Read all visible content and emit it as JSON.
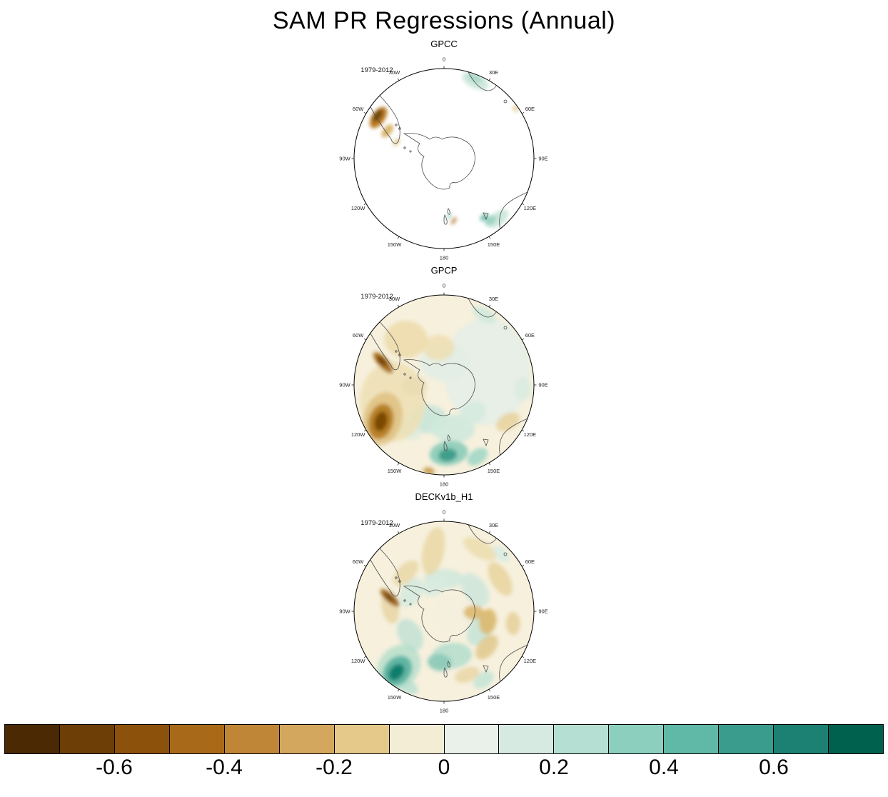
{
  "chart_data": {
    "type": "heatmap",
    "title": "SAM PR Regressions (Annual)",
    "projection": "south polar stereographic",
    "lon_labels": [
      "0",
      "30E",
      "60E",
      "90E",
      "120E",
      "150E",
      "180",
      "150W",
      "120W",
      "90W",
      "60W",
      "30W"
    ],
    "colorbar": {
      "range": [
        -0.8,
        0.8
      ],
      "interval": 0.1,
      "tick_values": [
        -0.6,
        -0.4,
        -0.2,
        0,
        0.2,
        0.4,
        0.6
      ],
      "tick_labels": [
        "-0.6",
        "-0.4",
        "-0.2",
        "0",
        "0.2",
        "0.4",
        "0.6"
      ],
      "colors": [
        "#4a2903",
        "#6d3e06",
        "#8c510a",
        "#a86a19",
        "#bf8638",
        "#d3a75d",
        "#e4c98a",
        "#f4edd6",
        "#eaf1ea",
        "#d6eae2",
        "#b5dfd3",
        "#8ccfbf",
        "#60b8a6",
        "#399c8d",
        "#1c8073",
        "#01614f"
      ]
    },
    "panels": [
      {
        "title": "GPCC",
        "period": "1979-2012",
        "coverage": "land only (ocean blank)",
        "bg": "#ffffff",
        "notable_features": [
          "strong negative (brown, ~-0.3 to -0.5) over southern South America near 60W",
          "weak positive (teal, ~0.1-0.2) over southern Africa near 30E",
          "positive (~0.1-0.3) over southeast Australia and Tasmania near 150E",
          "small mixed values over New Zealand"
        ],
        "shading": [
          [
            22,
            0.93,
            20,
            10,
            25,
            "#cfe8dd",
            1
          ],
          [
            21,
            0.96,
            11,
            5,
            25,
            "#a9d8c8",
            1
          ],
          [
            55,
            0.97,
            5,
            3,
            55,
            "#dfc27d",
            0.9
          ],
          [
            302,
            0.86,
            9,
            17,
            35,
            "#b97a22",
            1
          ],
          [
            303,
            0.88,
            5,
            10,
            35,
            "#6f4407",
            1
          ],
          [
            296,
            0.7,
            6,
            11,
            40,
            "#d9b268",
            0.95
          ],
          [
            289,
            0.56,
            4,
            7,
            40,
            "#e6d29e",
            0.9
          ],
          [
            138,
            0.9,
            17,
            9,
            -40,
            "#cde8dd",
            1
          ],
          [
            143,
            0.86,
            9,
            6,
            -40,
            "#9ed4c2",
            1
          ],
          [
            146,
            0.79,
            6,
            4,
            -40,
            "#74c1ad",
            1
          ],
          [
            171,
            0.7,
            2.5,
            6,
            35,
            "#c38e4d",
            1
          ],
          [
            175,
            0.64,
            2.5,
            5,
            35,
            "#a6d6c4",
            1
          ]
        ]
      },
      {
        "title": "GPCP",
        "period": "1979-2012",
        "coverage": "full field",
        "bg": "#f6f0dd",
        "notable_features": [
          "strong negative (dark brown, ~-0.5 to -0.7) blob in SE Pacific near 120W",
          "negative streak (~-0.4) along southern South America / Drake Passage",
          "strong positive (teal, ~0.3-0.5) south of New Zealand near 180",
          "weak positive ring around Antarctic coast, weak negative in midlatitudes west"
        ],
        "shading": [
          [
            73,
            0.5,
            60,
            75,
            0,
            "#e4efe7",
            0.85
          ],
          [
            0,
            0.25,
            34,
            26,
            0,
            "#e1eee6",
            0.8
          ],
          [
            205,
            0.42,
            26,
            20,
            0,
            "#c9e6d9",
            0.9
          ],
          [
            168,
            0.5,
            30,
            20,
            0,
            "#cfe9dc",
            0.9
          ],
          [
            135,
            0.45,
            20,
            15,
            -40,
            "#d5ebdf",
            0.85
          ],
          [
            218,
            0.62,
            18,
            13,
            40,
            "#dcecdf",
            0.8
          ],
          [
            252,
            0.6,
            46,
            56,
            0,
            "#eedfb2",
            0.8
          ],
          [
            320,
            0.66,
            30,
            26,
            0,
            "#ecd9a6",
            0.8
          ],
          [
            352,
            0.42,
            22,
            18,
            0,
            "#eddcab",
            0.75
          ],
          [
            268,
            0.33,
            18,
            14,
            0,
            "#e8dab1",
            0.7
          ],
          [
            120,
            0.82,
            18,
            11,
            -30,
            "#e8d29c",
            0.85
          ],
          [
            93,
            0.88,
            12,
            16,
            0,
            "#ddecdf",
            0.9
          ],
          [
            30,
            0.9,
            18,
            9,
            28,
            "#d2e9dd",
            0.9
          ],
          [
            155,
            0.88,
            16,
            10,
            -35,
            "#a7d9c8",
            0.95
          ],
          [
            176,
            0.76,
            27,
            17,
            -8,
            "#8fcdbb",
            0.95
          ],
          [
            177,
            0.78,
            13,
            9,
            -8,
            "#3f9f8b",
            1
          ],
          [
            190,
            0.97,
            8,
            5,
            10,
            "#c99b4e",
            0.9
          ],
          [
            241,
            0.78,
            27,
            38,
            15,
            "#d8b368",
            0.6
          ],
          [
            240,
            0.81,
            17,
            25,
            15,
            "#b4791f",
            0.9
          ],
          [
            240,
            0.81,
            9,
            14,
            15,
            "#7c4a06",
            1
          ],
          [
            290,
            0.72,
            19,
            7,
            48,
            "#a96e18",
            0.95
          ],
          [
            291,
            0.74,
            9,
            4,
            48,
            "#70430a",
            1
          ]
        ]
      },
      {
        "title": "DECKv1b_H1",
        "period": "1979-2012",
        "coverage": "full field (model)",
        "bg": "#f6f0dd",
        "notable_features": [
          "positive (teal) annulus around Antarctic coast (~0.1-0.3)",
          "negative (tan/orange) ring in midlatitudes, strongest near 90E-120E (~-0.3)",
          "strong positive (dark teal, ~0.5-0.7) blob near 150W at map edge",
          "negative streak (~-0.4) near Antarctic Peninsula / 90W"
        ],
        "shading": [
          [
            0,
            0.36,
            28,
            14,
            0,
            "#d3e9dc",
            0.9
          ],
          [
            55,
            0.42,
            26,
            16,
            55,
            "#cfe7da",
            0.9
          ],
          [
            115,
            0.45,
            26,
            16,
            -60,
            "#c8e4d6",
            0.9
          ],
          [
            170,
            0.5,
            28,
            18,
            -5,
            "#b9dfcf",
            0.95
          ],
          [
            185,
            0.57,
            17,
            12,
            8,
            "#8ecbb8",
            0.95
          ],
          [
            235,
            0.46,
            24,
            16,
            60,
            "#c6e3d5",
            0.95
          ],
          [
            300,
            0.42,
            22,
            14,
            -60,
            "#d5ebdf",
            0.9
          ],
          [
            340,
            0.3,
            20,
            13,
            -25,
            "#d8ecdf",
            0.85
          ],
          [
            105,
            0.1,
            30,
            26,
            0,
            "#f4efdd",
            0.95
          ],
          [
            350,
            0.68,
            34,
            15,
            -78,
            "#ead7a4",
            0.85
          ],
          [
            30,
            0.8,
            26,
            12,
            30,
            "#ecdcab",
            0.8
          ],
          [
            60,
            0.72,
            26,
            13,
            60,
            "#e7d49e",
            0.85
          ],
          [
            103,
            0.5,
            18,
            12,
            -80,
            "#dcb96d",
            0.9
          ],
          [
            100,
            0.78,
            16,
            10,
            90,
            "#e6d09a",
            0.85
          ],
          [
            130,
            0.62,
            20,
            12,
            -50,
            "#e2c88c",
            0.85
          ],
          [
            160,
            0.75,
            18,
            10,
            -20,
            "#e8d5a2",
            0.8
          ],
          [
            275,
            0.6,
            24,
            12,
            80,
            "#e7d3a0",
            0.8
          ],
          [
            315,
            0.6,
            22,
            12,
            -45,
            "#e9d6a4",
            0.8
          ],
          [
            92,
            0.33,
            14,
            10,
            0,
            "#dcb86e",
            0.9
          ],
          [
            150,
            0.88,
            16,
            10,
            -35,
            "#c6e5d6",
            0.9
          ],
          [
            205,
            0.93,
            14,
            9,
            25,
            "#bfe2d3",
            0.9
          ],
          [
            45,
            0.9,
            14,
            8,
            45,
            "#d8ece2",
            0.85
          ],
          [
            219,
            0.8,
            28,
            34,
            40,
            "#a9dbc9",
            0.7
          ],
          [
            218,
            0.84,
            18,
            23,
            40,
            "#58b09e",
            0.9
          ],
          [
            218,
            0.86,
            9,
            13,
            40,
            "#0f7e6d",
            1
          ],
          [
            284,
            0.62,
            17,
            6,
            42,
            "#9a6212",
            0.95
          ],
          [
            284,
            0.63,
            8,
            3,
            42,
            "#6f4306",
            1
          ]
        ]
      }
    ]
  }
}
